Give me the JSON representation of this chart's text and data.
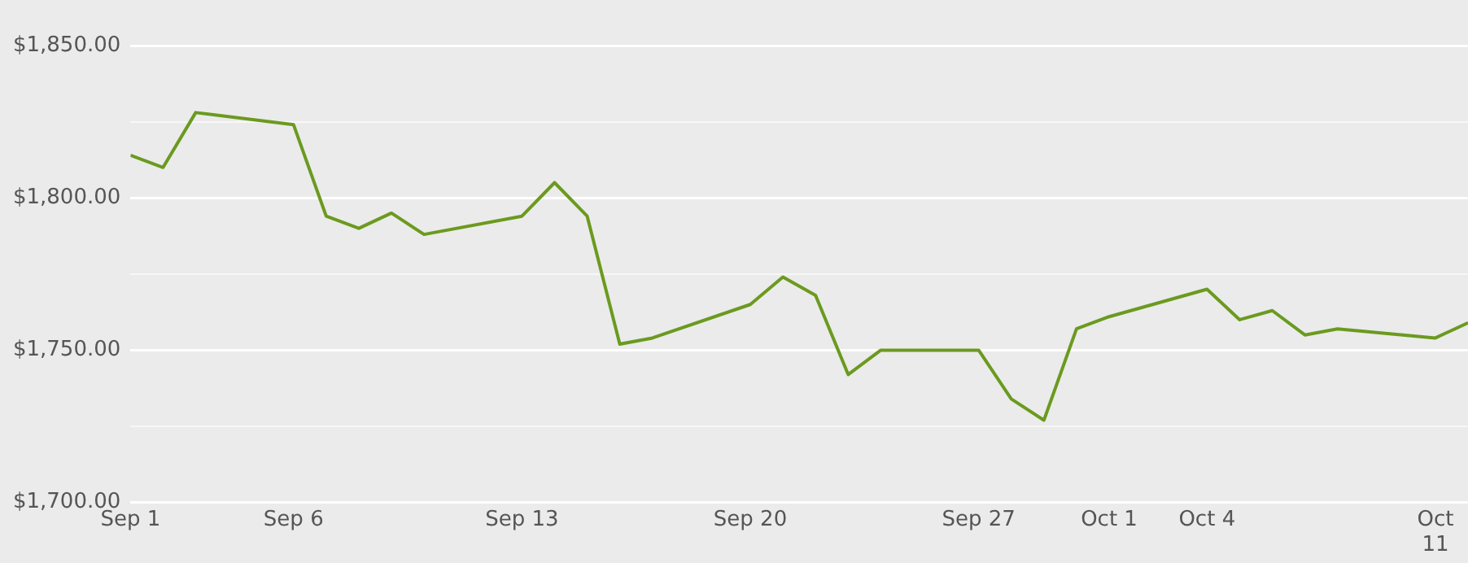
{
  "chart_data": {
    "type": "line",
    "x": [
      "--09-01",
      "--09-02",
      "--09-03",
      "--09-06",
      "--09-07",
      "--09-08",
      "--09-09",
      "--09-10",
      "--09-13",
      "--09-14",
      "--09-15",
      "--09-16",
      "--09-17",
      "--09-20",
      "--09-21",
      "--09-22",
      "--09-23",
      "--09-24",
      "--09-27",
      "--09-28",
      "--09-29",
      "--09-30",
      "--10-01",
      "--10-04",
      "--10-05",
      "--10-06",
      "--10-07",
      "--10-08",
      "--10-11",
      "--10-12"
    ],
    "series": [
      {
        "color": "#6b9a1f",
        "values": [
          1814,
          1810,
          1828,
          1824,
          1794,
          1790,
          1795,
          1788,
          1794,
          1805,
          1794,
          1752,
          1754,
          1765,
          1774,
          1768,
          1742,
          1750,
          1750,
          1734,
          1727,
          1757,
          1761,
          1770,
          1760,
          1763,
          1755,
          1757,
          1754,
          1759
        ]
      }
    ],
    "xlim": [
      "--09-01",
      "--10-12"
    ],
    "xticks": [
      {
        "value": "--09-01",
        "label": "Sep 1"
      },
      {
        "value": "--09-06",
        "label": "Sep 6"
      },
      {
        "value": "--09-13",
        "label": "Sep 13"
      },
      {
        "value": "--09-20",
        "label": "Sep 20"
      },
      {
        "value": "--09-27",
        "label": "Sep 27"
      },
      {
        "value": "--10-01",
        "label": "Oct 1"
      },
      {
        "value": "--10-04",
        "label": "Oct 4"
      },
      {
        "value": "--10-11",
        "label": "Oct 11"
      }
    ],
    "ylim": [
      1700,
      1850
    ],
    "yticks": [
      {
        "value": 1700,
        "label": "$1,700.00"
      },
      {
        "value": 1725,
        "label": null
      },
      {
        "value": 1750,
        "label": "$1,750.00"
      },
      {
        "value": 1775,
        "label": null
      },
      {
        "value": 1800,
        "label": "$1,800.00"
      },
      {
        "value": 1825,
        "label": null
      },
      {
        "value": 1850,
        "label": "$1,850.00"
      }
    ],
    "grid": "y",
    "legend": false,
    "marker": "none",
    "line_style": "solid"
  }
}
